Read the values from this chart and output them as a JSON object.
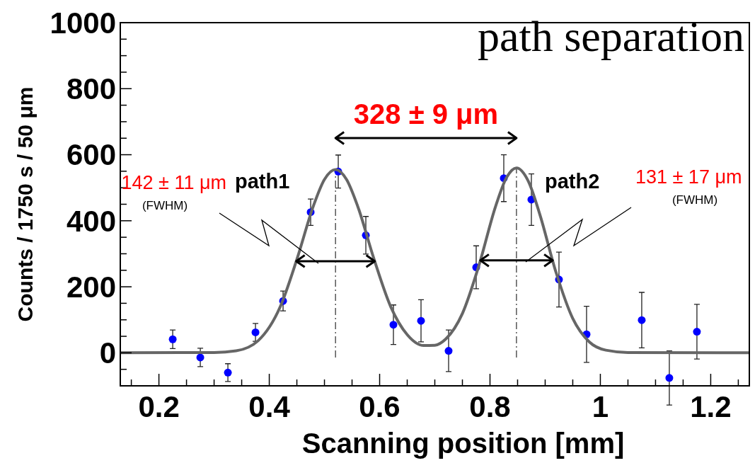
{
  "chart_data": {
    "type": "scatter",
    "xlabel": "Scanning position [mm]",
    "ylabel": "Counts / 1750 s / 50 μm",
    "xlim": [
      0.13,
      1.27
    ],
    "ylim": [
      -100,
      1000
    ],
    "xticks": [
      {
        "value": 0.15,
        "label": null
      },
      0.2,
      {
        "value": 0.25,
        "label": null
      },
      {
        "value": 0.3,
        "label": null
      },
      {
        "value": 0.35,
        "label": null
      },
      0.4,
      {
        "value": 0.45,
        "label": null
      },
      {
        "value": 0.5,
        "label": null
      },
      {
        "value": 0.55,
        "label": null
      },
      0.6,
      {
        "value": 0.65,
        "label": null
      },
      {
        "value": 0.7,
        "label": null
      },
      {
        "value": 0.75,
        "label": null
      },
      0.8,
      {
        "value": 0.85,
        "label": null
      },
      {
        "value": 0.9,
        "label": null
      },
      {
        "value": 0.95,
        "label": null
      },
      1,
      {
        "value": 1.05,
        "label": null
      },
      {
        "value": 1.1,
        "label": null
      },
      {
        "value": 1.15,
        "label": null
      },
      1.2,
      {
        "value": 1.25,
        "label": null
      }
    ],
    "yticks": [
      {
        "value": -100,
        "label": null
      },
      {
        "value": -50,
        "label": null
      },
      0,
      {
        "value": 50,
        "label": null
      },
      {
        "value": 100,
        "label": null
      },
      {
        "value": 150,
        "label": null
      },
      200,
      {
        "value": 250,
        "label": null
      },
      {
        "value": 300,
        "label": null
      },
      {
        "value": 350,
        "label": null
      },
      400,
      {
        "value": 450,
        "label": null
      },
      {
        "value": 500,
        "label": null
      },
      {
        "value": 550,
        "label": null
      },
      600,
      {
        "value": 650,
        "label": null
      },
      {
        "value": 700,
        "label": null
      },
      {
        "value": 750,
        "label": null
      },
      800,
      {
        "value": 850,
        "label": null
      },
      {
        "value": 900,
        "label": null
      },
      {
        "value": 950,
        "label": null
      },
      1000
    ],
    "grid": false,
    "series": [
      {
        "color": "#0000ff",
        "marker": "circle",
        "x": [
          0.225,
          0.275,
          0.325,
          0.375,
          0.425,
          0.475,
          0.525,
          0.575,
          0.625,
          0.675,
          0.725,
          0.775,
          0.825,
          0.875,
          0.925,
          0.975,
          1.075,
          1.125,
          1.175
        ],
        "values": [
          41,
          -14,
          -60,
          62,
          157,
          426,
          549,
          356,
          85,
          97,
          6,
          259,
          529,
          464,
          222,
          56,
          99,
          -76,
          64
        ],
        "errors": [
          28,
          28,
          27,
          27,
          30,
          40,
          50,
          57,
          60,
          64,
          63,
          65,
          71,
          78,
          83,
          85,
          84,
          82,
          83
        ]
      },
      {
        "type": "line",
        "color": "#666666",
        "marker": "none",
        "line_style": "solid",
        "x": [
          0.13,
          0.3,
          0.34,
          0.38,
          0.42,
          0.45,
          0.48,
          0.5,
          0.52,
          0.54,
          0.56,
          0.59,
          0.62,
          0.65,
          0.68,
          0.7,
          0.72,
          0.75,
          0.78,
          0.81,
          0.83,
          0.848,
          0.87,
          0.89,
          0.92,
          0.95,
          0.98,
          1.01,
          1.05,
          1.27
        ],
        "values": [
          0,
          1,
          6,
          37,
          140,
          283,
          445,
          525,
          555,
          525,
          445,
          283,
          140,
          55,
          22,
          23,
          42,
          119,
          265,
          443,
          531,
          560,
          518,
          421,
          242,
          104,
          33,
          8,
          1,
          0
        ]
      }
    ],
    "ref_lines": [
      {
        "axis": "x",
        "value": 0.52,
        "color": "#000000",
        "line_style": "dashed"
      },
      {
        "axis": "x",
        "value": 0.848,
        "color": "#000000",
        "line_style": "dashed"
      }
    ],
    "annotations": [
      "path separation",
      "328 ± 9 μm",
      "142 ± 11 μm",
      "(FWHM)",
      "path1",
      "131 ± 17 μm",
      "(FWHM)",
      "path2"
    ]
  }
}
